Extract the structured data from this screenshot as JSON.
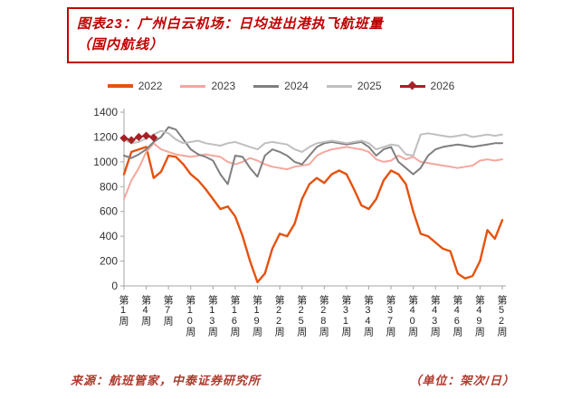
{
  "title": {
    "line1": "图表23：广州白云机场：日均进出港执飞航班量",
    "line2": "（国内航线）"
  },
  "footer": {
    "source": "来源：航班管家，中泰证券研究所",
    "unit": "（单位：架次/日）"
  },
  "colors": {
    "title_red": "#c00000",
    "footer_red": "#b0392e",
    "axis_gray": "#a6a6a6"
  },
  "chart_data": {
    "type": "line",
    "title": "广州白云机场日均进出港执飞航班量（国内航线）",
    "xlabel": "周",
    "ylabel": "架次/日",
    "ylim": [
      0,
      1400
    ],
    "yticks": [
      0,
      200,
      400,
      600,
      800,
      1000,
      1200,
      1400
    ],
    "grid": false,
    "legend_position": "top",
    "n_points": 52,
    "x_tick_step": 3,
    "x_tick_labels": [
      "第1周",
      "第4周",
      "第7周",
      "第10周",
      "第13周",
      "第16周",
      "第19周",
      "第22周",
      "第25周",
      "第28周",
      "第31周",
      "第34周",
      "第37周",
      "第40周",
      "第43周",
      "第46周",
      "第49周",
      "第52周"
    ],
    "series": [
      {
        "name": "2022",
        "color": "#e5520f",
        "width": 2.4,
        "marker": "none",
        "values": [
          900,
          1080,
          1100,
          1120,
          870,
          920,
          1050,
          1040,
          980,
          900,
          850,
          780,
          700,
          620,
          640,
          560,
          400,
          200,
          30,
          100,
          300,
          420,
          400,
          500,
          700,
          820,
          870,
          830,
          900,
          930,
          900,
          780,
          650,
          620,
          700,
          850,
          930,
          900,
          820,
          600,
          420,
          400,
          350,
          300,
          280,
          100,
          60,
          80,
          200,
          450,
          380,
          530
        ]
      },
      {
        "name": "2023",
        "color": "#f5a79d",
        "width": 2,
        "marker": "none",
        "values": [
          700,
          850,
          950,
          1080,
          1150,
          1100,
          1080,
          1060,
          1050,
          1040,
          1050,
          1060,
          1050,
          1040,
          1000,
          980,
          1000,
          1030,
          1010,
          980,
          960,
          950,
          940,
          960,
          970,
          980,
          1050,
          1080,
          1100,
          1110,
          1120,
          1110,
          1100,
          1080,
          1020,
          1000,
          1010,
          1050,
          1020,
          1040,
          1000,
          990,
          980,
          970,
          960,
          950,
          960,
          970,
          1010,
          1020,
          1010,
          1020
        ]
      },
      {
        "name": "2024",
        "color": "#7f7f7f",
        "width": 2,
        "marker": "none",
        "values": [
          1050,
          1030,
          1060,
          1100,
          1160,
          1200,
          1280,
          1260,
          1180,
          1100,
          1060,
          1040,
          1010,
          900,
          820,
          1050,
          1040,
          950,
          880,
          1050,
          1100,
          1080,
          1050,
          1000,
          980,
          1050,
          1120,
          1150,
          1160,
          1150,
          1140,
          1150,
          1160,
          1120,
          1050,
          1100,
          1120,
          1000,
          950,
          900,
          950,
          1050,
          1100,
          1120,
          1130,
          1140,
          1130,
          1120,
          1130,
          1140,
          1150,
          1150
        ]
      },
      {
        "name": "2025",
        "color": "#bfbfbf",
        "width": 2,
        "marker": "none",
        "values": [
          1180,
          1150,
          1160,
          1190,
          1220,
          1250,
          1230,
          1180,
          1150,
          1160,
          1170,
          1150,
          1140,
          1130,
          1150,
          1160,
          1140,
          1120,
          1100,
          1150,
          1160,
          1150,
          1140,
          1100,
          1080,
          1120,
          1150,
          1160,
          1170,
          1160,
          1150,
          1160,
          1170,
          1150,
          1100,
          1120,
          1140,
          1130,
          1060,
          1050,
          1220,
          1230,
          1220,
          1210,
          1200,
          1210,
          1220,
          1200,
          1210,
          1220,
          1210,
          1220
        ]
      },
      {
        "name": "2026",
        "color": "#a62126",
        "width": 2,
        "marker": "diamond",
        "values": [
          1190,
          1175,
          1200,
          1210,
          1195
        ]
      }
    ]
  }
}
